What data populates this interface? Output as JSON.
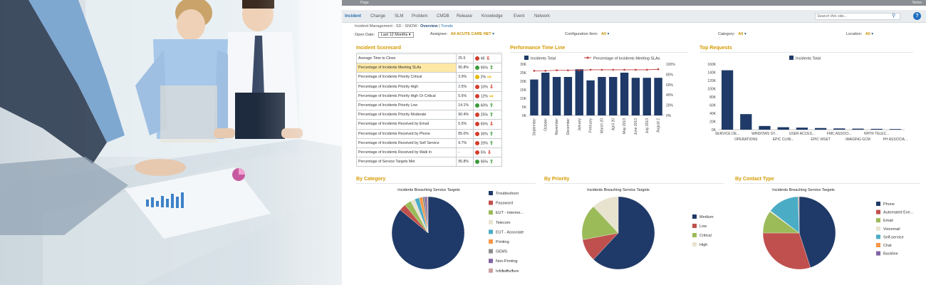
{
  "window": {
    "title": "Page",
    "notes": "Notes"
  },
  "nav": {
    "items": [
      "Incident",
      "Change",
      "SLM",
      "Problem",
      "CMDB",
      "Release",
      "Knowledge",
      "Event",
      "Network"
    ],
    "active": "Incident",
    "search_placeholder": "Search this site...",
    "help": "?"
  },
  "breadcrumb": {
    "path": "Incident Management - SD - SNOW :",
    "current": "Overview",
    "sep": "|",
    "other": "Trends"
  },
  "filters": {
    "open_date_label": "Open Date:",
    "open_date_value": "Last 12 Months",
    "assignee_label": "Assignee:",
    "assignee_value": "All ACUTE CARE HET",
    "config_label": "Configuration Item:",
    "config_value": "All",
    "category_label": "Category:",
    "category_value": "All",
    "location_label": "Location:",
    "location_value": "All"
  },
  "panels": {
    "scorecard": "Incident Scorecard",
    "performance": "Performance Time Line",
    "top_requests": "Top Requests",
    "by_category": "By Category",
    "by_priority": "By Priority",
    "by_contact": "By Contact Type"
  },
  "scorecard": [
    {
      "label": "Average Time to Close",
      "value": "25.5",
      "status": "red",
      "target": "48",
      "trend": "down-red"
    },
    {
      "label": "Percentage of Incidents Meeting SLAs",
      "value": "95.8%",
      "status": "green",
      "target": "95%",
      "trend": "up-green",
      "highlight": true
    },
    {
      "label": "Percentage of Incidents Priority Critical",
      "value": "3.9%",
      "status": "yellow",
      "target": "2%",
      "trend": "right-yellow"
    },
    {
      "label": "Percentage of Incidents Priority High",
      "value": "2.5%",
      "status": "red",
      "target": "10%",
      "trend": "down-red"
    },
    {
      "label": "Percentage of Incidents Priority High Or Critical",
      "value": "5.6%",
      "status": "red",
      "target": "12%",
      "trend": "right-yellow"
    },
    {
      "label": "Percentage of Incidents Priority Low",
      "value": "14.1%",
      "status": "green",
      "target": "60%",
      "trend": "up-green"
    },
    {
      "label": "Percentage of Incidents Priority Moderate",
      "value": "90.4%",
      "status": "red",
      "target": "25%",
      "trend": "up-green"
    },
    {
      "label": "Percentage of Incidents Received by Email",
      "value": "5.5%",
      "status": "red",
      "target": "65%",
      "trend": "down-red"
    },
    {
      "label": "Percentage of Incidents Received by Phone",
      "value": "85.0%",
      "status": "red",
      "target": "30%",
      "trend": "up-green"
    },
    {
      "label": "Percentage of Incidents Received by Self Service",
      "value": "9.7%",
      "status": "red",
      "target": "20%",
      "trend": "up-green"
    },
    {
      "label": "Percentage of Incidents Received by Walk In",
      "value": "-",
      "status": "red",
      "target": "5%",
      "trend": "down-red"
    },
    {
      "label": "Percentage of Service Targets Met",
      "value": "95.8%",
      "status": "green",
      "target": "95%",
      "trend": "up-green"
    }
  ],
  "colors": {
    "navy": "#1f3a68",
    "red_line": "#c23a3a",
    "accent": "#d49a00",
    "green": "#3a9a3a",
    "red": "#d23b2b",
    "yellow": "#e6b800"
  },
  "chart_data": [
    {
      "type": "bar",
      "title": "Performance Time Line",
      "categories": [
        "September",
        "October",
        "November",
        "December",
        "January",
        "February",
        "March 20",
        "April 20",
        "May 2013",
        "June 2013",
        "July 2013",
        "August 2"
      ],
      "series": [
        {
          "name": "Incidents Total",
          "type": "bar",
          "axis": "left",
          "values": [
            21000,
            25000,
            22500,
            22500,
            27000,
            20500,
            22500,
            22500,
            25000,
            22000,
            22000,
            22000
          ]
        },
        {
          "name": "Percentage of Incidents Meeting SLAs",
          "type": "line",
          "axis": "right",
          "values": [
            87,
            87,
            88,
            88,
            88,
            89,
            89,
            89,
            89,
            89,
            89,
            90
          ]
        }
      ],
      "yticks_left": [
        "0K",
        "5K",
        "10K",
        "15K",
        "20K",
        "25K",
        "30K"
      ],
      "yticks_right": [
        "0%",
        "20%",
        "40%",
        "60%",
        "80%",
        "100%"
      ],
      "ylim_left": [
        0,
        30000
      ],
      "ylim_right": [
        0,
        100
      ]
    },
    {
      "type": "bar",
      "title": "Top Requests",
      "categories": [
        "SERVICE DE...",
        "OPERATIONS",
        "WINDOWS SY...",
        "EPIC CLINI...",
        "USER ACCES...",
        "EPIC WSET",
        "FMC ASSOCI...",
        "IMAGING GCM",
        "NHTR TELEC...",
        "PH ASSOCIA..."
      ],
      "series": [
        {
          "name": "Incidents Total",
          "values": [
            145000,
            38000,
            9000,
            6000,
            5000,
            4000,
            3000,
            2500,
            2000,
            1500
          ]
        }
      ],
      "yticks": [
        "0K",
        "20K",
        "40K",
        "60K",
        "80K",
        "100K",
        "120K",
        "140K",
        "160K"
      ],
      "ylim": [
        0,
        160000
      ]
    },
    {
      "type": "pie",
      "title": "Incidents Breaching Service Targets",
      "labels": [
        "Troubleshoot",
        "Password",
        "EUT - Interme...",
        "Telecom",
        "EUT - Associate",
        "Printing",
        "GEMS",
        "Non-Printing",
        "Infrastructure"
      ],
      "values": [
        86,
        3,
        3,
        2,
        2,
        1.5,
        1,
        1,
        0.5
      ],
      "colors": [
        "#1f3a68",
        "#c0504d",
        "#9bbb59",
        "#e8e3cf",
        "#4bacc6",
        "#f79646",
        "#8c8c8c",
        "#8064a2",
        "#c9a0a0"
      ]
    },
    {
      "type": "pie",
      "title": "Incidents Breaching Service Targets",
      "labels": [
        "Medium",
        "Low",
        "Critical",
        "High"
      ],
      "values": [
        62,
        10,
        16,
        12
      ],
      "colors": [
        "#1f3a68",
        "#c0504d",
        "#9bbb59",
        "#e8e3cf"
      ]
    },
    {
      "type": "pie",
      "title": "Incidents Breaching Service Targets",
      "labels": [
        "Phone",
        "Automated Eve...",
        "Email",
        "Voicemail",
        "Self-service",
        "Chat",
        "Backline"
      ],
      "values": [
        45,
        30,
        10,
        0.5,
        14,
        0.3,
        0.2
      ],
      "colors": [
        "#1f3a68",
        "#c0504d",
        "#9bbb59",
        "#e8e3cf",
        "#4bacc6",
        "#f79646",
        "#8064a2"
      ]
    }
  ],
  "more_indicator": "• • •"
}
